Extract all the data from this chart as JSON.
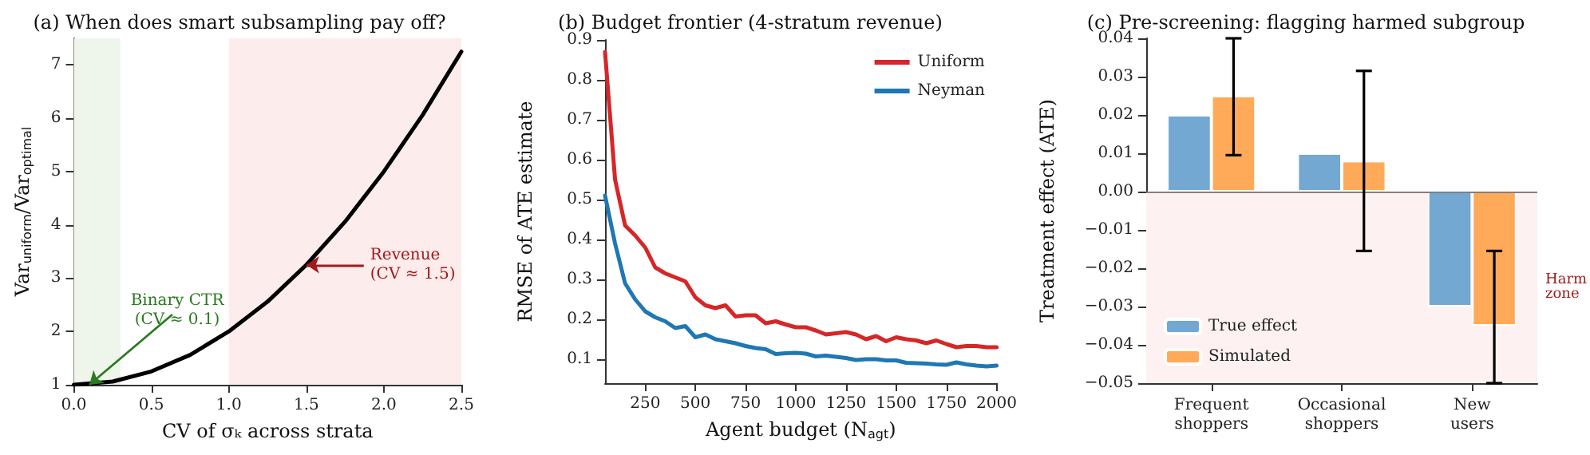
{
  "chart_data": [
    {
      "type": "line",
      "title": "(a) When does smart subsampling pay off?",
      "xlabel": "CV of σₖ across strata",
      "ylabel": "Var$_{uniform}$/Var$_{optimal}$",
      "x": [
        0,
        0.25,
        0.5,
        0.75,
        1,
        1.25,
        1.5,
        1.75,
        2,
        2.25,
        2.5
      ],
      "series": [
        {
          "color": "#000000",
          "values": [
            1,
            1.06,
            1.25,
            1.56,
            2,
            2.56,
            3.25,
            4.06,
            5,
            6.06,
            7.25
          ]
        }
      ],
      "xlim": [
        0,
        2.5
      ],
      "xticks": [
        {
          "value": 0,
          "label": "0.0"
        },
        {
          "value": 0.5,
          "label": "0.5"
        },
        {
          "value": 1,
          "label": "1.0"
        },
        {
          "value": 1.5,
          "label": "1.5"
        },
        {
          "value": 2,
          "label": "2.0"
        },
        {
          "value": 2.5,
          "label": "2.5"
        }
      ],
      "ylim": [
        1,
        7.5
      ],
      "yticks": [
        1,
        2,
        3,
        4,
        5,
        6,
        7
      ],
      "bands": [
        {
          "axis": "x",
          "from": 0,
          "to": 0.3,
          "color": "#eef5ea"
        },
        {
          "axis": "x",
          "from": 1,
          "to": 2.5,
          "color": "#fcecec"
        }
      ],
      "annotations": [
        {
          "text": "Binary CTR\n(CV ≈ 0.1)",
          "x": 0.1,
          "y": 1
        },
        {
          "text": "Revenue\n(CV ≈ 1.5)",
          "x": 1.5,
          "y": 3.25
        }
      ],
      "grid": false,
      "legend": false,
      "marker": "none",
      "line_style": "solid"
    },
    {
      "type": "line",
      "title": "(b) Budget frontier (4-stratum revenue)",
      "xlabel": "Agent budget (N$_{agt}$)",
      "ylabel": "RMSE of ATE estimate",
      "x": [
        50,
        100,
        150,
        200,
        250,
        300,
        350,
        400,
        450,
        500,
        550,
        600,
        650,
        700,
        750,
        800,
        850,
        900,
        950,
        1000,
        1050,
        1100,
        1150,
        1200,
        1250,
        1300,
        1350,
        1400,
        1450,
        1500,
        1550,
        1600,
        1650,
        1700,
        1750,
        1800,
        1850,
        1900,
        1950,
        2000
      ],
      "series": [
        {
          "name": "Uniform",
          "color": "#d62728",
          "values": [
            0.87,
            0.55,
            0.435,
            0.41,
            0.38,
            0.33,
            0.315,
            0.305,
            0.295,
            0.255,
            0.235,
            0.228,
            0.235,
            0.207,
            0.21,
            0.21,
            0.19,
            0.195,
            0.187,
            0.18,
            0.18,
            0.172,
            0.162,
            0.165,
            0.168,
            0.162,
            0.15,
            0.158,
            0.145,
            0.155,
            0.15,
            0.147,
            0.14,
            0.147,
            0.138,
            0.13,
            0.133,
            0.133,
            0.13,
            0.13
          ]
        },
        {
          "name": "Neyman",
          "color": "#1f77b4",
          "values": [
            0.51,
            0.39,
            0.29,
            0.25,
            0.22,
            0.205,
            0.195,
            0.178,
            0.183,
            0.155,
            0.162,
            0.15,
            0.145,
            0.14,
            0.133,
            0.128,
            0.125,
            0.113,
            0.115,
            0.116,
            0.114,
            0.107,
            0.109,
            0.106,
            0.103,
            0.098,
            0.1,
            0.1,
            0.097,
            0.097,
            0.091,
            0.09,
            0.089,
            0.087,
            0.086,
            0.092,
            0.087,
            0.084,
            0.082,
            0.084
          ]
        }
      ],
      "xlim": [
        50,
        2000
      ],
      "xticks": [
        250,
        500,
        750,
        1000,
        1250,
        1500,
        1750,
        2000
      ],
      "ylim": [
        0.04,
        0.9
      ],
      "yticks": [
        0.1,
        0.2,
        0.3,
        0.4,
        0.5,
        0.6,
        0.7,
        0.8,
        0.9
      ],
      "grid": false,
      "legend": "top right",
      "marker": "none",
      "line_style": "solid"
    },
    {
      "type": "bar",
      "title": "(c) Pre-screening: flagging harmed subgroup",
      "ylabel": "Treatment effect (ATE)",
      "categories": [
        "Frequent\nshoppers",
        "Occasional\nshoppers",
        "New\nusers"
      ],
      "series": [
        {
          "name": "True effect",
          "color": "#6aa3cf",
          "values": [
            0.02,
            0.01,
            -0.03
          ]
        },
        {
          "name": "Simulated",
          "color": "#ffa54f",
          "values": [
            0.025,
            0.008,
            -0.035
          ],
          "errors": [
            [
              0.0095,
              0.04
            ],
            [
              -0.0155,
              0.0315
            ],
            [
              -0.05,
              -0.0155
            ]
          ]
        }
      ],
      "ylim": [
        -0.05,
        0.04
      ],
      "yticks": [
        {
          "value": -0.05,
          "label": "−0.05"
        },
        {
          "value": -0.04,
          "label": "−0.04"
        },
        {
          "value": -0.03,
          "label": "−0.03"
        },
        {
          "value": -0.02,
          "label": "−0.02"
        },
        {
          "value": -0.01,
          "label": "−0.01"
        },
        {
          "value": 0,
          "label": "0.00"
        },
        {
          "value": 0.01,
          "label": "0.01"
        },
        {
          "value": 0.02,
          "label": "0.02"
        },
        {
          "value": 0.03,
          "label": "0.03"
        },
        {
          "value": 0.04,
          "label": "0.04"
        }
      ],
      "bands": [
        {
          "axis": "y",
          "from": -0.05,
          "to": 0,
          "color": "#fdf1f1",
          "label": "Harm\nzone"
        }
      ],
      "ref_lines": [
        {
          "axis": "y",
          "value": 0,
          "color": "#808080"
        }
      ],
      "grid": false,
      "legend": "bottom left"
    }
  ]
}
